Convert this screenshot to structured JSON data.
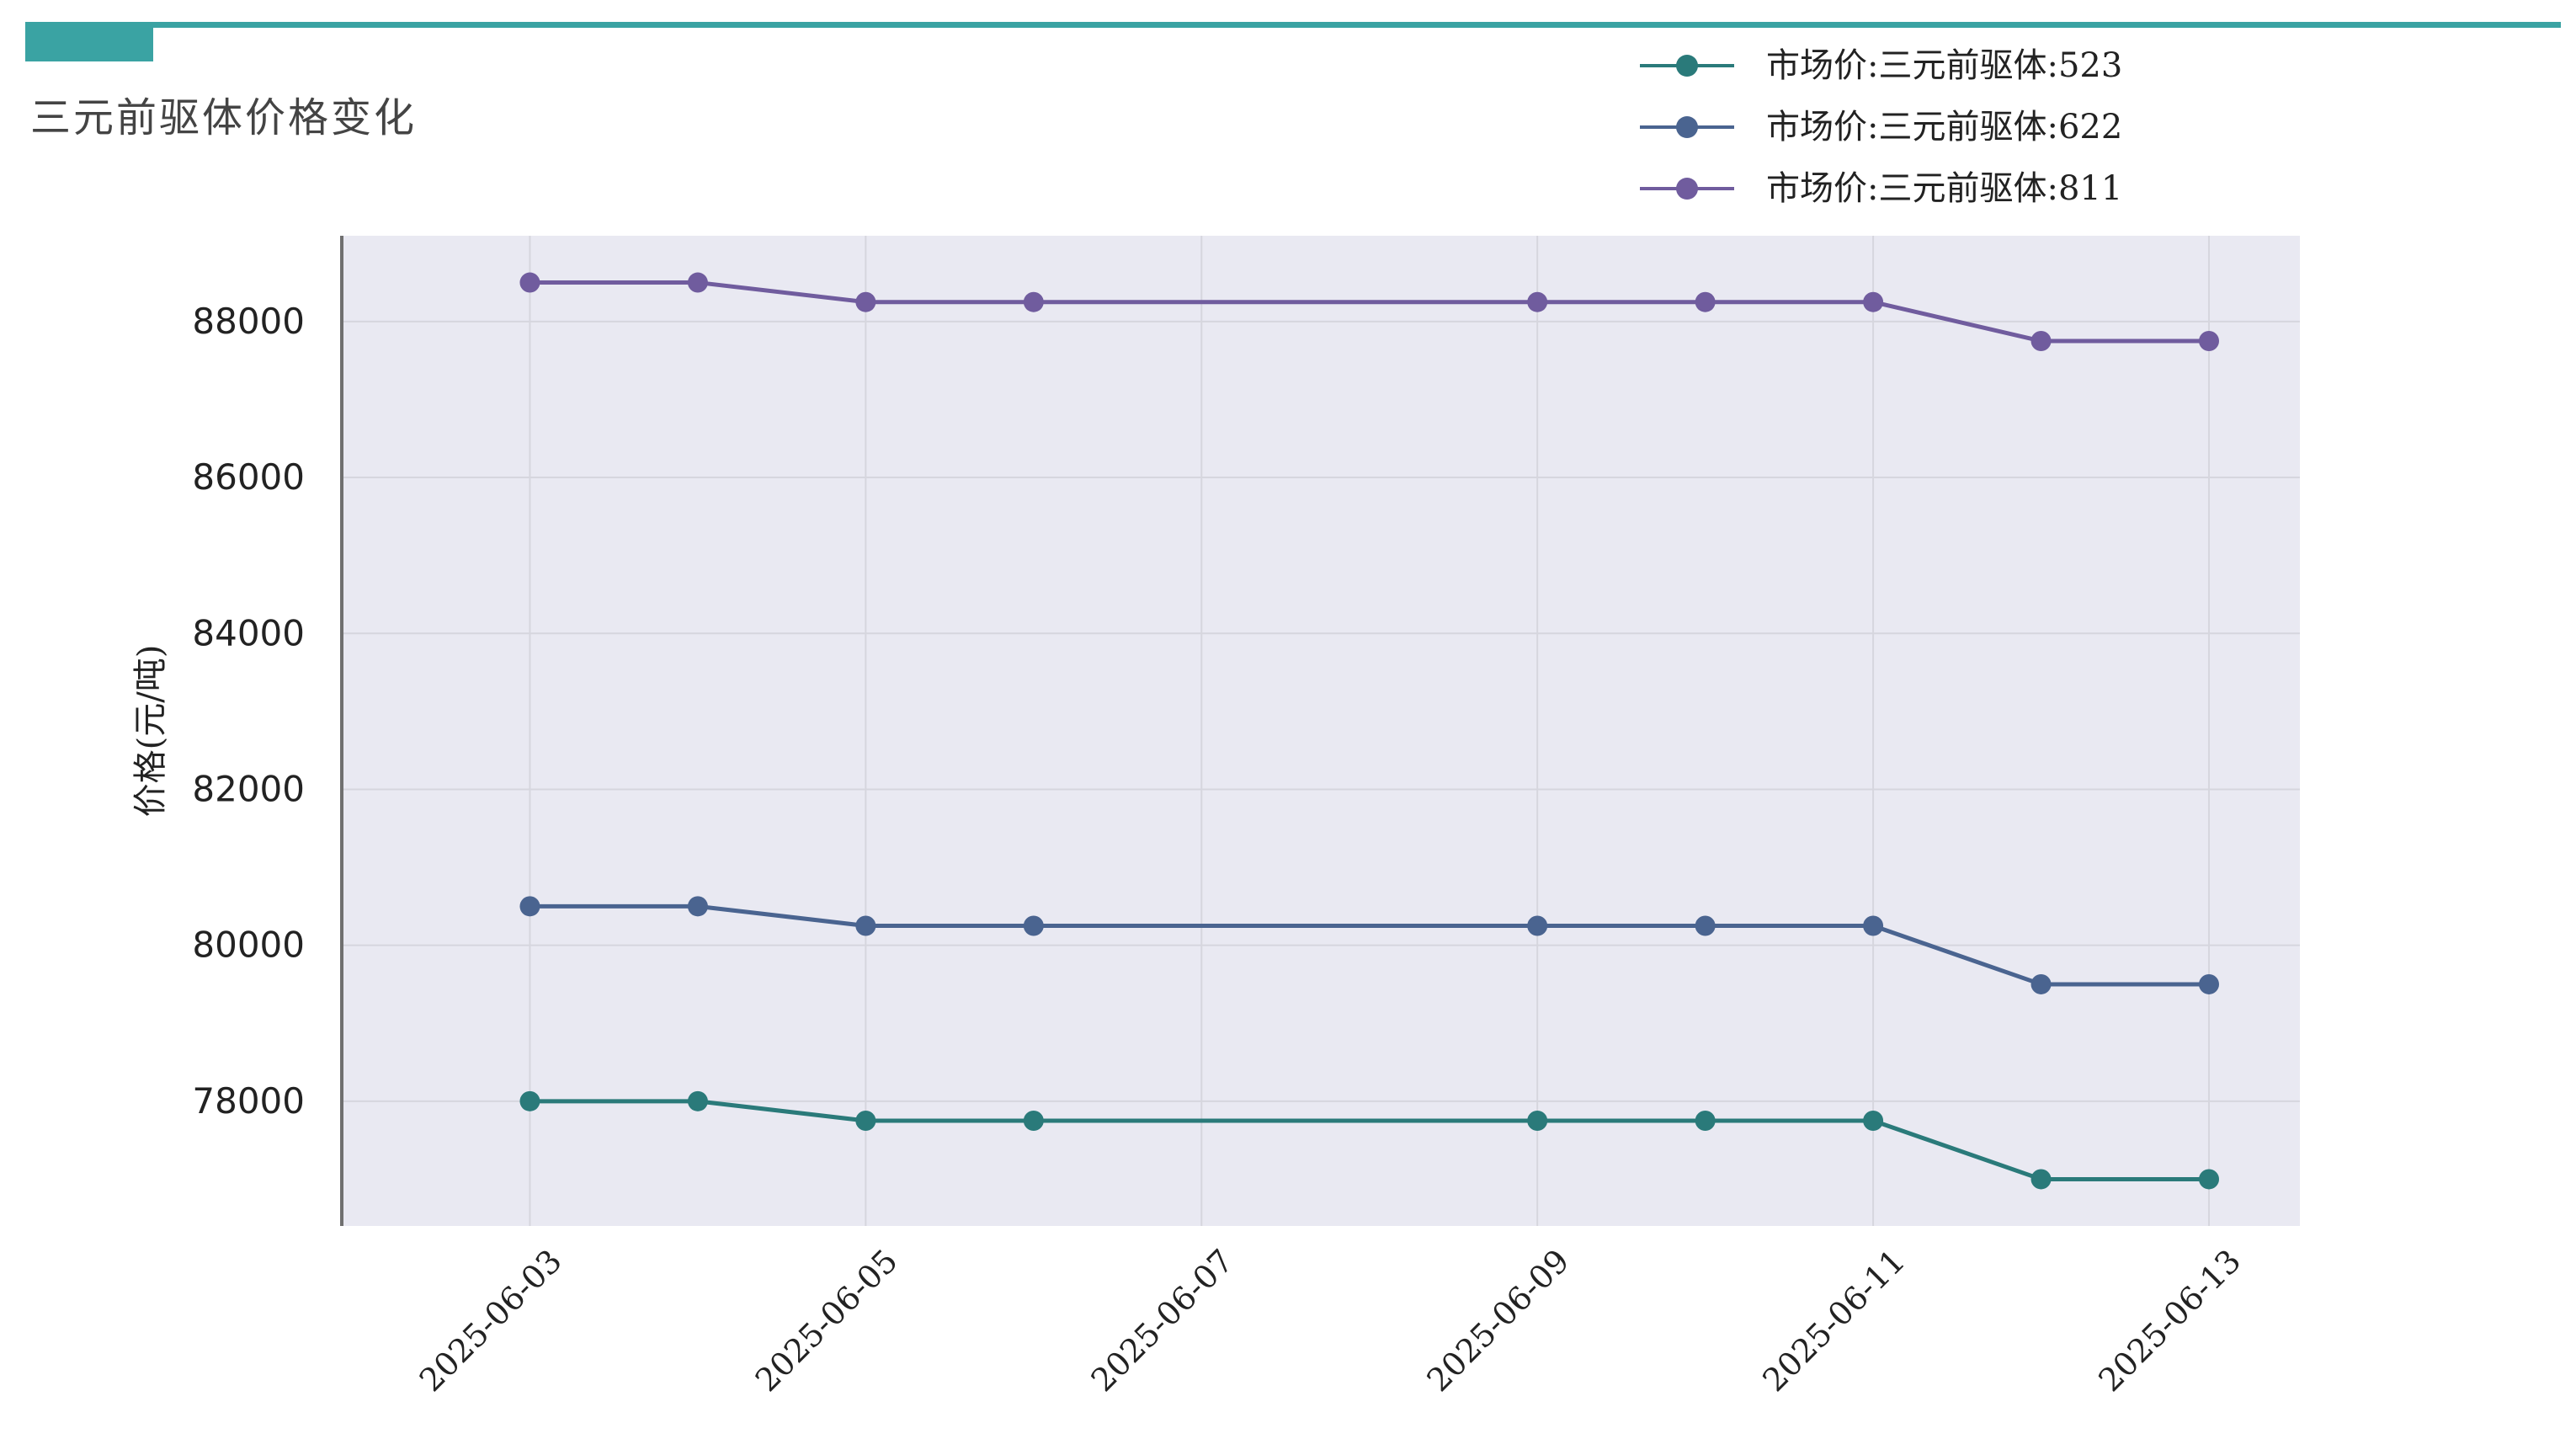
{
  "page": {
    "title": "三元前驱体价格变化"
  },
  "colors": {
    "accent": "#3aa3a3",
    "plot_bg": "#e9e9f2",
    "grid": "#d6d6de"
  },
  "chart_data": {
    "type": "line",
    "title": "",
    "xlabel": "",
    "ylabel": "价格(元/吨)",
    "x": [
      "2025-06-03",
      "2025-06-04",
      "2025-06-05",
      "2025-06-06",
      "2025-06-09",
      "2025-06-10",
      "2025-06-11",
      "2025-06-12",
      "2025-06-13"
    ],
    "x_ticks": [
      "2025-06-03",
      "2025-06-05",
      "2025-06-07",
      "2025-06-09",
      "2025-06-11",
      "2025-06-13"
    ],
    "xlim": [
      "2025-06-02",
      "2025-06-13"
    ],
    "y_ticks": [
      78000,
      80000,
      82000,
      84000,
      86000,
      88000
    ],
    "y_tick_labels": [
      "78000",
      "80000",
      "82000",
      "84000",
      "86000",
      "88000"
    ],
    "ylim": [
      76400,
      89100
    ],
    "grid": true,
    "legend_position": "top-right",
    "series": [
      {
        "name": "市场价:三元前驱体:523",
        "color": "#2a7a7a",
        "values": [
          78000,
          78000,
          77750,
          77750,
          77750,
          77750,
          77750,
          77000,
          77000
        ]
      },
      {
        "name": "市场价:三元前驱体:622",
        "color": "#4a6490",
        "values": [
          80500,
          80500,
          80250,
          80250,
          80250,
          80250,
          80250,
          79500,
          79500
        ]
      },
      {
        "name": "市场价:三元前驱体:811",
        "color": "#705c9e",
        "values": [
          88500,
          88500,
          88250,
          88250,
          88250,
          88250,
          88250,
          87750,
          87750
        ]
      }
    ]
  }
}
